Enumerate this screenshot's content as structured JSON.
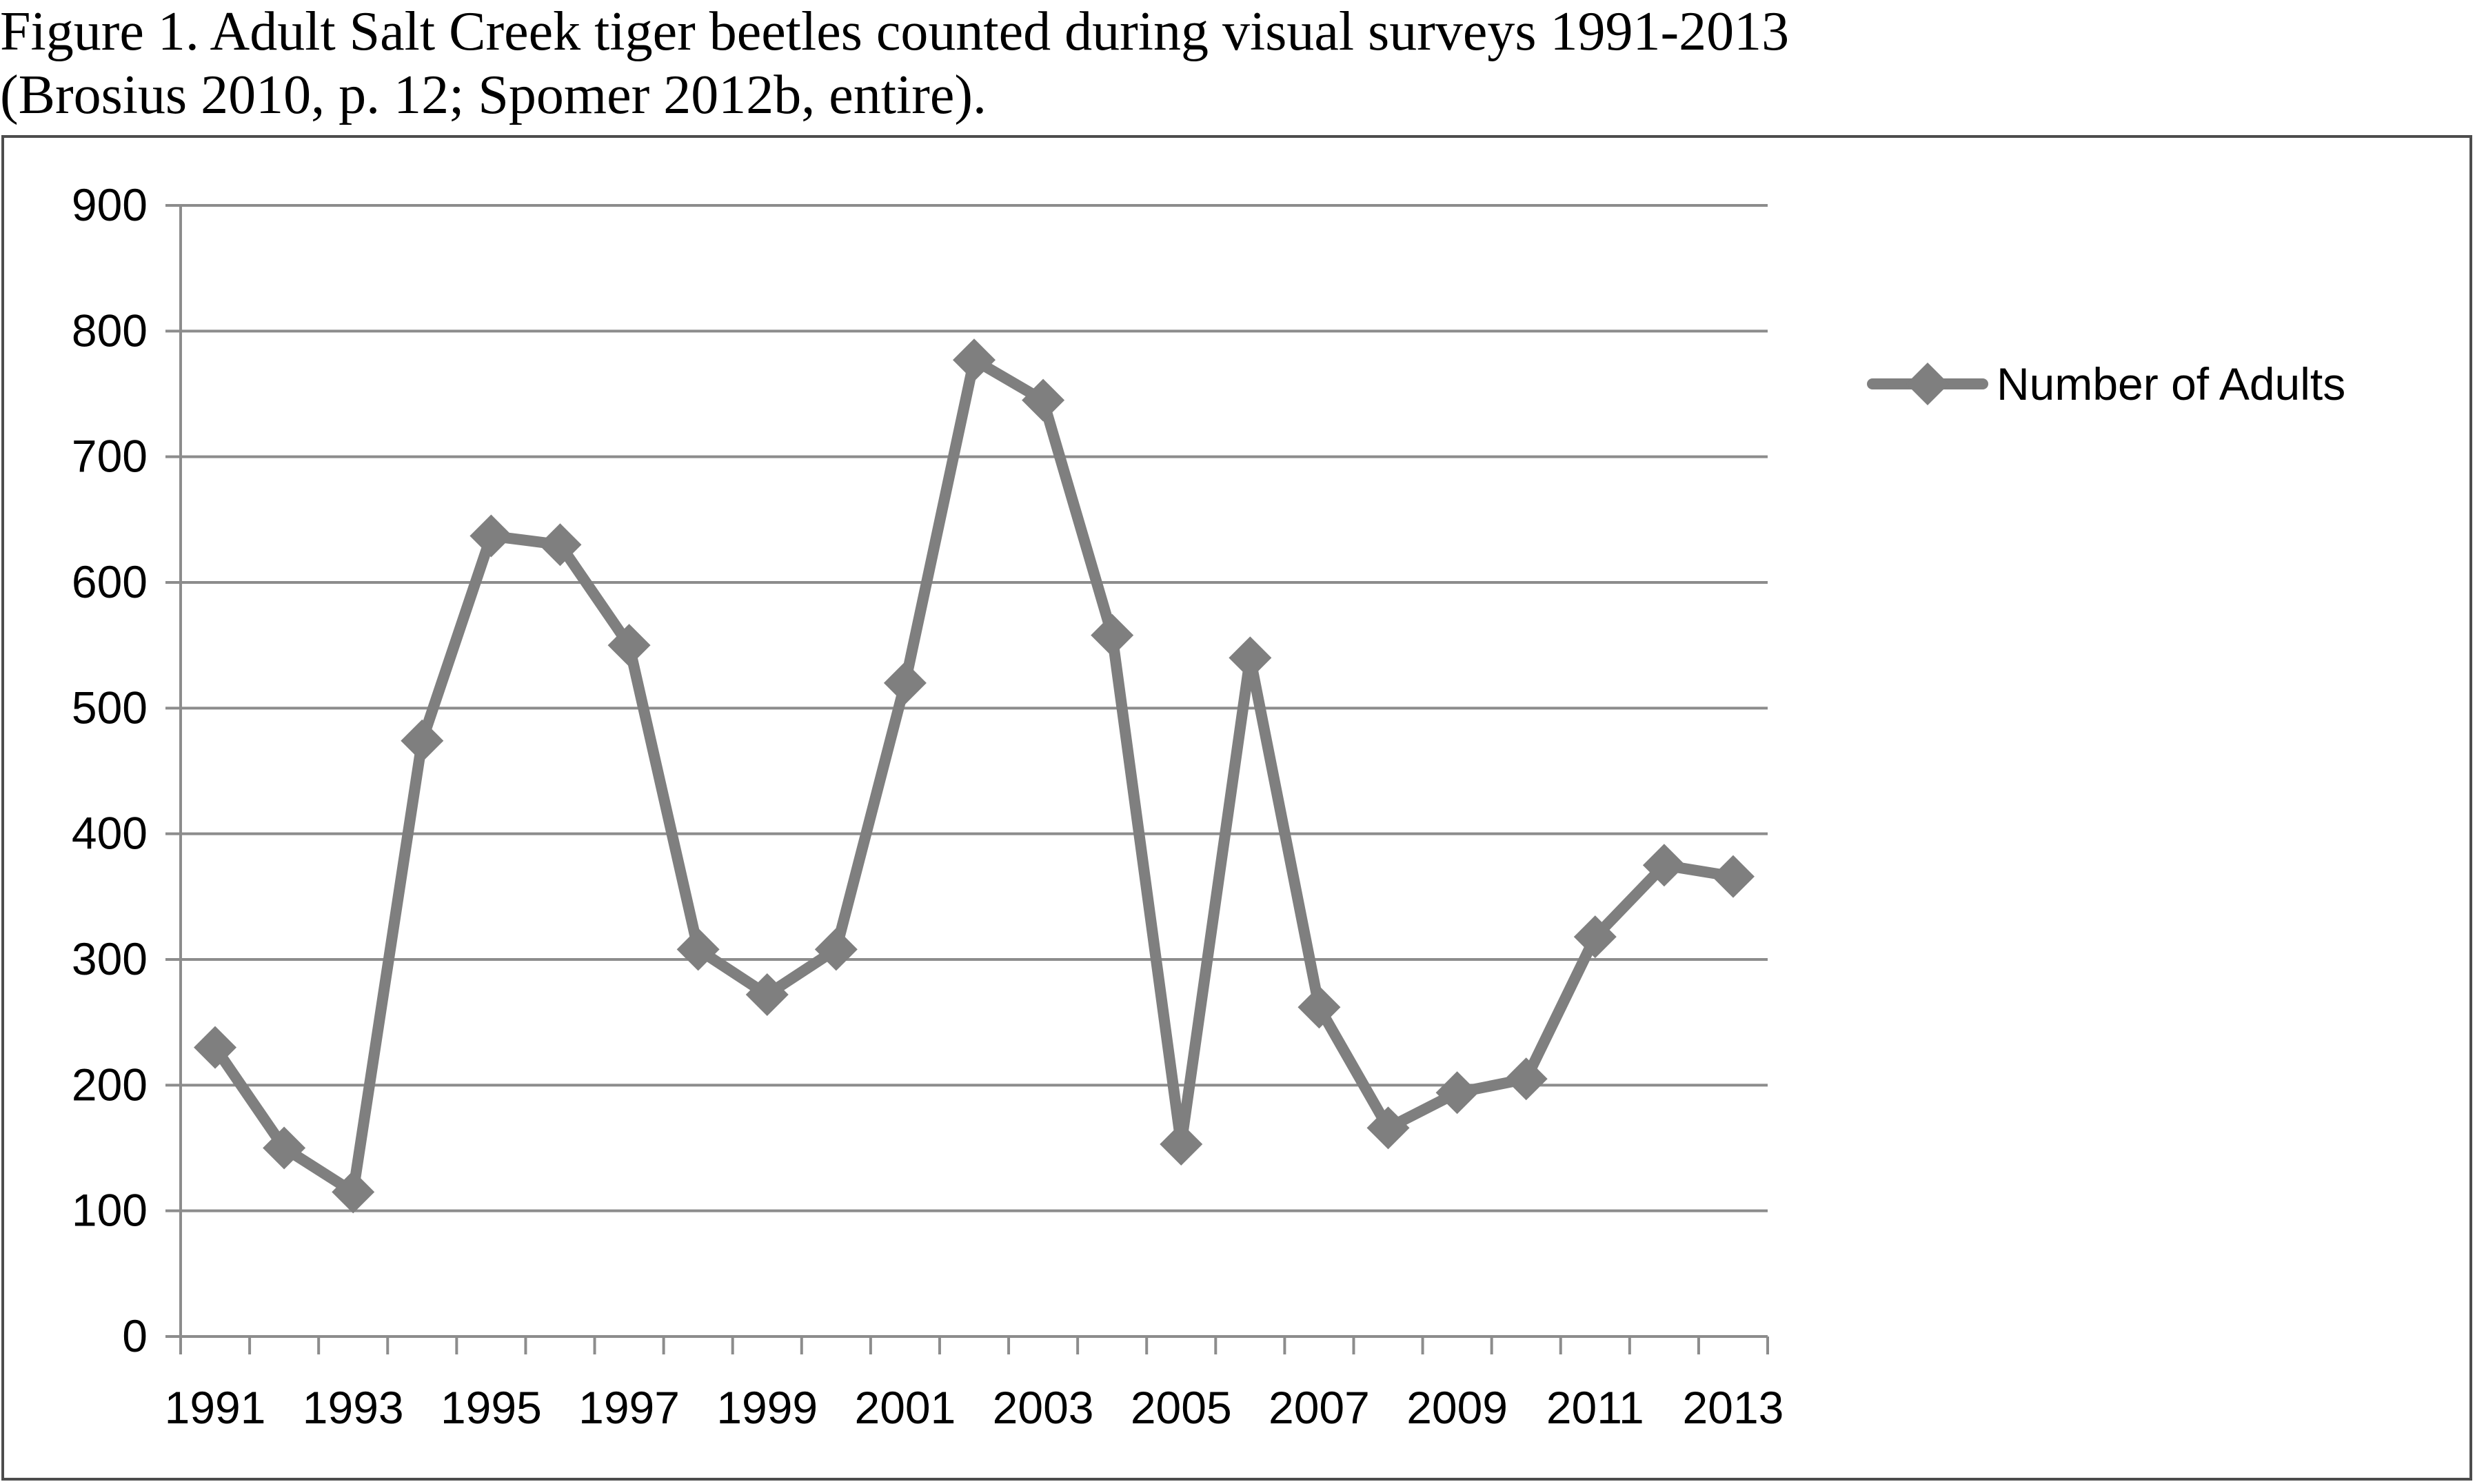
{
  "caption": {
    "line1": "Figure 1.  Adult Salt Creek tiger beetles counted during visual surveys 1991-2013",
    "line2": "(Brosius 2010, p. 12; Spomer 2012b, entire)."
  },
  "chart_data": {
    "type": "line",
    "title": "",
    "xlabel": "",
    "ylabel": "",
    "x": [
      1991,
      1992,
      1993,
      1994,
      1995,
      1996,
      1997,
      1998,
      1999,
      2000,
      2001,
      2002,
      2003,
      2004,
      2005,
      2006,
      2007,
      2008,
      2009,
      2010,
      2011,
      2012,
      2013
    ],
    "x_tick_labels": [
      "1991",
      "1993",
      "1995",
      "1997",
      "1999",
      "2001",
      "2003",
      "2005",
      "2007",
      "2009",
      "2011",
      "2013"
    ],
    "y_tick_labels": [
      "0",
      "100",
      "200",
      "300",
      "400",
      "500",
      "600",
      "700",
      "800",
      "900"
    ],
    "ylim": [
      0,
      900
    ],
    "grid": "horizontal",
    "legend": "right",
    "series": [
      {
        "name": "Number of Adults",
        "color": "#7f7f7f",
        "marker": "diamond",
        "values": [
          230,
          150,
          115,
          474,
          637,
          630,
          550,
          308,
          272,
          308,
          520,
          777,
          745,
          558,
          153,
          540,
          262,
          166,
          194,
          205,
          318,
          375,
          366
        ]
      }
    ]
  }
}
